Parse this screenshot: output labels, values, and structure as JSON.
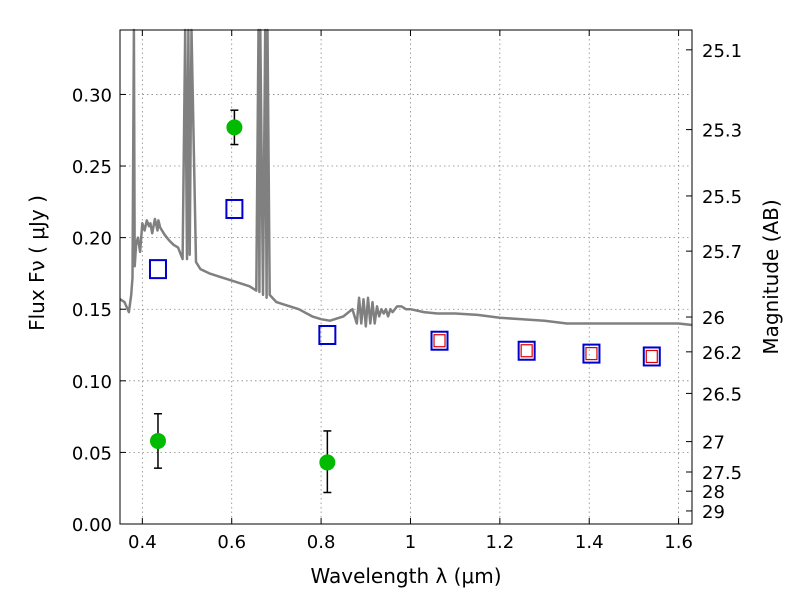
{
  "chart_data": {
    "type": "scatter",
    "xlabel": "Wavelength  λ (μm)",
    "ylabel": "Flux  Fν  ( μJy )",
    "y2label": "Magnitude (AB)",
    "xlim": [
      0.35,
      1.63
    ],
    "ylim": [
      0.0,
      0.345
    ],
    "grid": true,
    "x_ticks": [
      0.4,
      0.6,
      0.8,
      1.0,
      1.2,
      1.4,
      1.6
    ],
    "x_tick_labels": [
      "0.4",
      "0.6",
      "0.8",
      "1",
      "1.2",
      "1.4",
      "1.6"
    ],
    "y_ticks": [
      0.0,
      0.05,
      0.1,
      0.15,
      0.2,
      0.25,
      0.3
    ],
    "y_tick_labels": [
      "0.00",
      "0.05",
      "0.10",
      "0.15",
      "0.20",
      "0.25",
      "0.30"
    ],
    "mag_ticks": [
      25.1,
      25.3,
      25.5,
      25.7,
      26,
      26.2,
      26.5,
      27,
      27.5,
      28,
      29
    ],
    "mag_tick_labels": [
      "25.1",
      "25.3",
      "25.5",
      "25.7",
      "26",
      "26.2",
      "26.5",
      "27",
      "27.5",
      "28",
      "29"
    ],
    "colors": {
      "sed": "#808080",
      "observed": "#00bb00",
      "model_box": "#0000cc",
      "model_small_box": "#dd0000",
      "errorbar": "#000000",
      "grid": "#888888"
    },
    "observed": {
      "x": [
        0.435,
        0.606,
        0.814
      ],
      "y": [
        0.058,
        0.277,
        0.043
      ],
      "yerr_low": [
        0.019,
        0.012,
        0.021
      ],
      "yerr_high": [
        0.019,
        0.012,
        0.022
      ]
    },
    "model_photometry": {
      "x": [
        0.435,
        0.606,
        0.814,
        1.065,
        1.26,
        1.405,
        1.54
      ],
      "y": [
        0.178,
        0.22,
        0.132,
        0.128,
        0.121,
        0.119,
        0.117
      ]
    },
    "model_photometry_inner": {
      "x": [
        1.065,
        1.26,
        1.405,
        1.54
      ],
      "y": [
        0.128,
        0.121,
        0.119,
        0.117
      ]
    },
    "sed": {
      "x": [
        0.35,
        0.36,
        0.37,
        0.375,
        0.378,
        0.381,
        0.383,
        0.386,
        0.39,
        0.395,
        0.4,
        0.405,
        0.41,
        0.415,
        0.418,
        0.422,
        0.428,
        0.432,
        0.434,
        0.436,
        0.44,
        0.45,
        0.46,
        0.47,
        0.48,
        0.49,
        0.496,
        0.5,
        0.503,
        0.506,
        0.51,
        0.52,
        0.53,
        0.55,
        0.57,
        0.6,
        0.62,
        0.64,
        0.655,
        0.66,
        0.662,
        0.664,
        0.67,
        0.675,
        0.678,
        0.68,
        0.685,
        0.7,
        0.72,
        0.75,
        0.78,
        0.8,
        0.82,
        0.85,
        0.87,
        0.88,
        0.885,
        0.89,
        0.895,
        0.9,
        0.905,
        0.91,
        0.915,
        0.92,
        0.925,
        0.93,
        0.935,
        0.94,
        0.945,
        0.95,
        0.955,
        0.96,
        0.97,
        0.98,
        0.99,
        1.0,
        1.03,
        1.06,
        1.1,
        1.15,
        1.2,
        1.25,
        1.3,
        1.35,
        1.4,
        1.45,
        1.5,
        1.55,
        1.58,
        1.6,
        1.63
      ],
      "y": [
        0.157,
        0.155,
        0.148,
        0.16,
        0.172,
        0.345,
        0.18,
        0.195,
        0.2,
        0.19,
        0.21,
        0.205,
        0.212,
        0.208,
        0.21,
        0.203,
        0.213,
        0.208,
        0.205,
        0.212,
        0.207,
        0.202,
        0.198,
        0.195,
        0.193,
        0.185,
        0.345,
        0.185,
        0.345,
        0.188,
        0.345,
        0.183,
        0.178,
        0.175,
        0.173,
        0.17,
        0.168,
        0.166,
        0.163,
        0.345,
        0.162,
        0.345,
        0.16,
        0.345,
        0.158,
        0.345,
        0.16,
        0.155,
        0.153,
        0.15,
        0.145,
        0.143,
        0.142,
        0.145,
        0.15,
        0.14,
        0.158,
        0.14,
        0.157,
        0.138,
        0.158,
        0.14,
        0.155,
        0.14,
        0.152,
        0.145,
        0.15,
        0.147,
        0.15,
        0.145,
        0.15,
        0.148,
        0.152,
        0.152,
        0.15,
        0.15,
        0.148,
        0.147,
        0.147,
        0.146,
        0.144,
        0.143,
        0.142,
        0.14,
        0.14,
        0.14,
        0.14,
        0.14,
        0.14,
        0.14,
        0.139
      ]
    }
  }
}
